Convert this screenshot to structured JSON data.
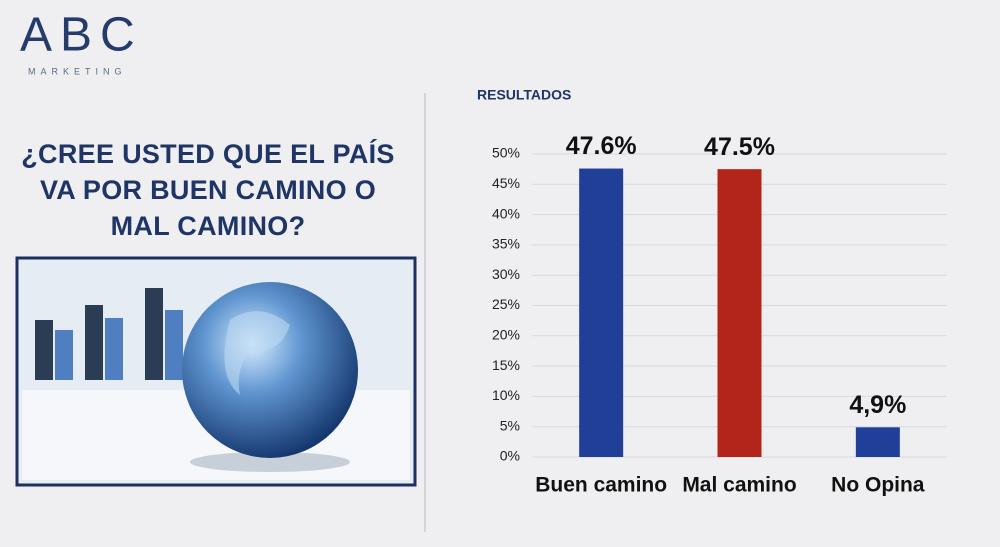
{
  "logo": {
    "name": "ABC",
    "tagline": "MARKETING"
  },
  "question_lines": [
    "¿CREE USTED QUE EL PAÍS",
    "VA POR BUEN CAMINO O",
    "MAL CAMINO?"
  ],
  "chart_data": {
    "type": "bar",
    "title": "RESULTADOS",
    "categories": [
      "Buen camino",
      "Mal camino",
      "No Opina"
    ],
    "values": [
      47.6,
      47.5,
      4.9
    ],
    "value_labels": [
      "47.6%",
      "47.5%",
      "4,9%"
    ],
    "colors": [
      "#1f3f99",
      "#b3241a",
      "#1f3f99"
    ],
    "ylim": [
      0,
      50
    ],
    "yticks": [
      {
        "value": 0,
        "label": "0%"
      },
      {
        "value": 5,
        "label": "5%"
      },
      {
        "value": 10,
        "label": "10%"
      },
      {
        "value": 15,
        "label": "15%"
      },
      {
        "value": 20,
        "label": "20%"
      },
      {
        "value": 25,
        "label": "25%"
      },
      {
        "value": 30,
        "label": "30%"
      },
      {
        "value": 35,
        "label": "35%"
      },
      {
        "value": 40,
        "label": "40%"
      },
      {
        "value": 45,
        "label": "45%"
      },
      {
        "value": 50,
        "label": "50%"
      }
    ],
    "grid": true
  }
}
